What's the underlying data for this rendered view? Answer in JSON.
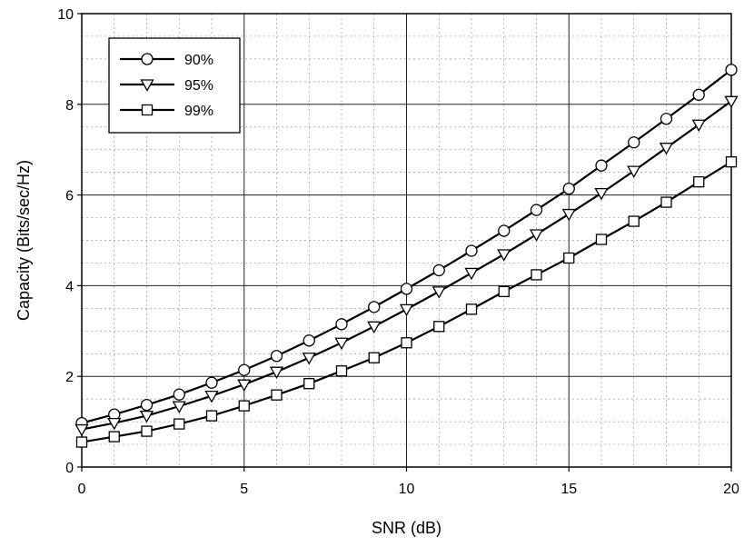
{
  "chart_data": {
    "type": "line",
    "title": "",
    "xlabel": "SNR (dB)",
    "ylabel": "Capacity (Bits/sec/Hz)",
    "xlim": [
      0,
      20
    ],
    "ylim": [
      0,
      10
    ],
    "xticks": [
      0,
      5,
      10,
      15,
      20
    ],
    "yticks": [
      0,
      2,
      4,
      6,
      8,
      10
    ],
    "grid": true,
    "legend": "top-left",
    "x": [
      0,
      1,
      2,
      3,
      4,
      5,
      6,
      7,
      8,
      9,
      10,
      11,
      12,
      13,
      14,
      15,
      16,
      17,
      18,
      19,
      20
    ],
    "series": [
      {
        "name": "90%",
        "marker": "circle",
        "values": [
          0.97,
          1.16,
          1.37,
          1.6,
          1.86,
          2.14,
          2.45,
          2.79,
          3.15,
          3.53,
          3.93,
          4.34,
          4.77,
          5.21,
          5.67,
          6.14,
          6.65,
          7.16,
          7.68,
          8.21,
          8.76
        ]
      },
      {
        "name": "95%",
        "marker": "triangle-down",
        "values": [
          0.83,
          0.97,
          1.13,
          1.34,
          1.57,
          1.82,
          2.1,
          2.41,
          2.74,
          3.1,
          3.48,
          3.87,
          4.28,
          4.69,
          5.13,
          5.58,
          6.04,
          6.53,
          7.04,
          7.55,
          8.07
        ]
      },
      {
        "name": "99%",
        "marker": "square",
        "values": [
          0.55,
          0.67,
          0.79,
          0.95,
          1.13,
          1.35,
          1.59,
          1.84,
          2.12,
          2.41,
          2.74,
          3.1,
          3.48,
          3.87,
          4.24,
          4.61,
          5.02,
          5.42,
          5.84,
          6.29,
          6.73
        ]
      }
    ]
  }
}
